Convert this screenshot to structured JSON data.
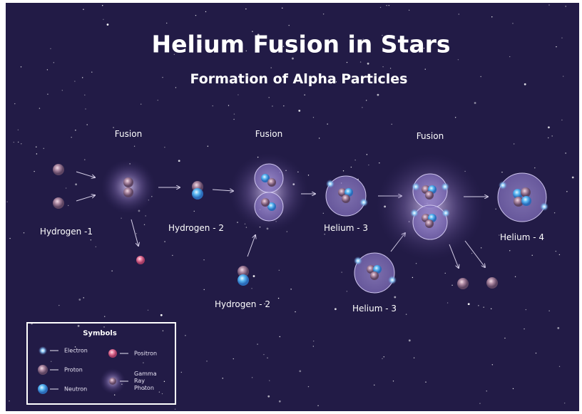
{
  "header": {
    "title": "Helium Fusion in Stars",
    "subtitle": "Formation of Alpha Particles"
  },
  "fusion_labels": [
    "Fusion",
    "Fusion",
    "Fusion"
  ],
  "nodes": [
    {
      "label": "Hydrogen -1"
    },
    {
      "label": "Hydrogen - 2"
    },
    {
      "label": "Hydrogen - 2"
    },
    {
      "label": "Helium - 3"
    },
    {
      "label": "Helium - 3"
    },
    {
      "label": "Helium - 4"
    }
  ],
  "legend": {
    "title": "Symbols",
    "items": [
      {
        "label": "Electron"
      },
      {
        "label": "Proton"
      },
      {
        "label": "Neutron"
      },
      {
        "label": "Positron"
      },
      {
        "label": "Gamma Ray Photon"
      }
    ]
  }
}
